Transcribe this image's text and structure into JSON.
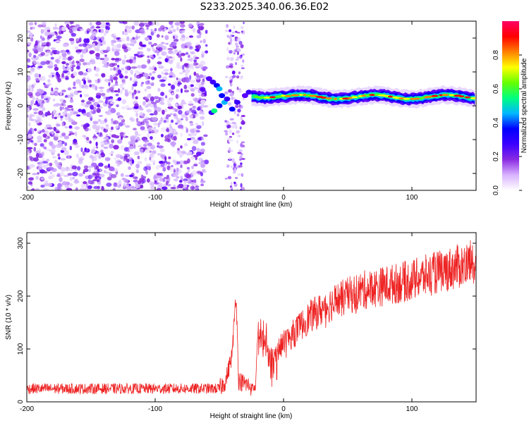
{
  "title": "S233.2025.340.06.36.E02",
  "chart_data": [
    {
      "type": "heatmap",
      "name": "spectrogram",
      "xlabel": "Height of straight line (km)",
      "ylabel": "Frequency (Hz)",
      "xlim": [
        -200,
        150
      ],
      "ylim": [
        -25,
        25
      ],
      "xticks": [
        -200,
        -100,
        0,
        100
      ],
      "yticks": [
        -20,
        -10,
        0,
        10,
        20
      ],
      "colorbar": {
        "label": "Normalized spectral amplitude",
        "range": [
          0,
          1
        ],
        "ticks": [
          "0.0",
          "0.2",
          "0.4",
          "0.6",
          "0.8"
        ],
        "colors": [
          "#ffffff",
          "#d9b3ff",
          "#8a2be2",
          "#3b00ff",
          "#0000ff",
          "#00b7ff",
          "#00ff80",
          "#66ff00",
          "#ffff00",
          "#ff8000",
          "#ff0000",
          "#ff0066"
        ]
      },
      "noise_region_km": [
        -200,
        -60
      ],
      "signal_band_hz": [
        1,
        4
      ],
      "signal_start_km": -25
    },
    {
      "type": "line",
      "name": "snr",
      "xlabel": "Height of straight line (km)",
      "ylabel": "SNR (10 * v/v)",
      "xlim": [
        -200,
        150
      ],
      "ylim": [
        0,
        320
      ],
      "xticks": [
        -200,
        -100,
        0,
        100
      ],
      "yticks": [
        0,
        100,
        200,
        300
      ],
      "series_color": "#ee2222",
      "key_points": [
        {
          "x": -200,
          "y": 25
        },
        {
          "x": -50,
          "y": 25
        },
        {
          "x": -45,
          "y": 40
        },
        {
          "x": -40,
          "y": 90
        },
        {
          "x": -37,
          "y": 210
        },
        {
          "x": -35,
          "y": 40
        },
        {
          "x": -22,
          "y": 25
        },
        {
          "x": -20,
          "y": 130
        },
        {
          "x": -10,
          "y": 80
        },
        {
          "x": 0,
          "y": 110
        },
        {
          "x": 20,
          "y": 160
        },
        {
          "x": 40,
          "y": 190
        },
        {
          "x": 60,
          "y": 210
        },
        {
          "x": 80,
          "y": 220
        },
        {
          "x": 100,
          "y": 230
        },
        {
          "x": 120,
          "y": 245
        },
        {
          "x": 150,
          "y": 265
        }
      ]
    }
  ]
}
